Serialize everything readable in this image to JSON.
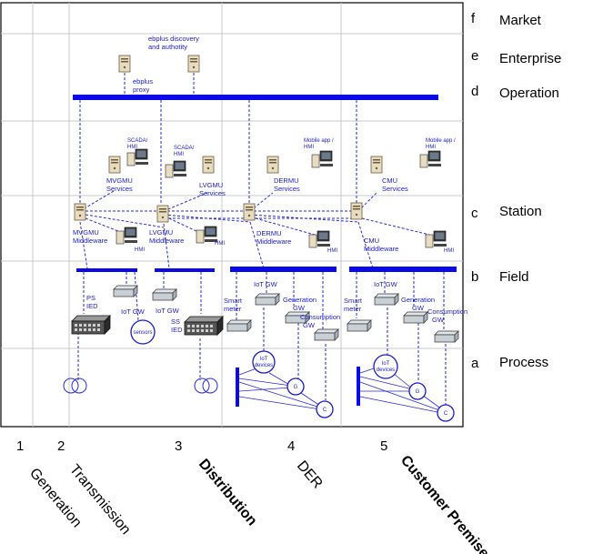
{
  "zones": [
    {
      "letter": "f",
      "name": "Market"
    },
    {
      "letter": "e",
      "name": "Enterprise"
    },
    {
      "letter": "d",
      "name": "Operation"
    },
    {
      "letter": "c",
      "name": "Station"
    },
    {
      "letter": "b",
      "name": "Field"
    },
    {
      "letter": "a",
      "name": "Process"
    }
  ],
  "domains": [
    {
      "number": "1",
      "name": "Generation",
      "bold": false
    },
    {
      "number": "2",
      "name": "Transmission",
      "bold": false
    },
    {
      "number": "3",
      "name": "Distribution",
      "bold": true
    },
    {
      "number": "4",
      "name": "DER",
      "bold": false
    },
    {
      "number": "5",
      "name": "Customer Premises",
      "bold": true
    }
  ],
  "enterprise": {
    "discovery_line1": "ebplus discovery",
    "discovery_line2": "and authotity",
    "proxy_line1": "ebplus",
    "proxy_line2": "proxy"
  },
  "operation": {
    "mvgmu_services": [
      "MVGMU",
      "Services"
    ],
    "lvgmu_services": [
      "LVGMU",
      "Services"
    ],
    "dermu_services": [
      "DERMU",
      "Services"
    ],
    "cmu_services": [
      "CMU",
      "Services"
    ],
    "scada_hmi_1": [
      "SCADA/",
      "HMI"
    ],
    "scada_hmi_2": [
      "SCADA/",
      "HMI"
    ],
    "mobile_hmi_1": [
      "Mobile app /",
      "HMI"
    ],
    "mobile_hmi_2": [
      "Mobile app /",
      "HMI"
    ]
  },
  "station": {
    "mvgmu_middleware": [
      "MVGMU",
      "Middleware"
    ],
    "lvgmu_middleware": [
      "LVGMU",
      "Middleware"
    ],
    "dermu_middleware": [
      "DERMU",
      "Middleware"
    ],
    "cmu_middleware": [
      "CMU",
      "Middleware"
    ],
    "hmi": "HMI"
  },
  "field": {
    "ps_ied": [
      "PS",
      "IED"
    ],
    "ss_ied": [
      "SS",
      "IED"
    ],
    "iot_gw": "IoT GW",
    "sensors": "sensors",
    "smart_meter": [
      "Smart",
      "meter"
    ],
    "generation_gw": [
      "Generation",
      "GW"
    ],
    "consumption_gw": [
      "Consumption",
      "GW"
    ]
  },
  "process": {
    "iot_devices": [
      "IoT",
      "devices"
    ],
    "generator": "G",
    "consumer": "C"
  },
  "colors": {
    "diagram_blue": "#1a1acc",
    "bus_blue": "#0a0ae6",
    "grid_gray": "#c8c8c8"
  }
}
